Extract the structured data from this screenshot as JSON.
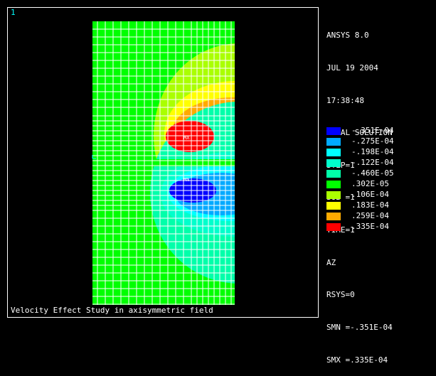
{
  "window_number": "1",
  "info_lines": [
    "ANSYS 8.0",
    "JUL 19 2004",
    "17:38:48",
    "NODAL SOLUTION",
    "STEP=1",
    "SUB =1",
    "TIME=1",
    "AZ",
    "RSYS=0",
    "SMN =-.351E-04",
    "SMX =.335E-04"
  ],
  "legend": [
    {
      "label": "-.351E-04",
      "color": "#0000ff"
    },
    {
      "label": "-.275E-04",
      "color": "#00aaff"
    },
    {
      "label": "-.198E-04",
      "color": "#00ffff"
    },
    {
      "label": "-.122E-04",
      "color": "#00ffcc"
    },
    {
      "label": "-.460E-05",
      "color": "#00ffaa"
    },
    {
      "label": ".302E-05",
      "color": "#00ff00"
    },
    {
      "label": ".106E-04",
      "color": "#aaff00"
    },
    {
      "label": ".183E-04",
      "color": "#ffff00"
    },
    {
      "label": ".259E-04",
      "color": "#ffaa00"
    },
    {
      "label": ".335E-04",
      "color": "#ff0000"
    }
  ],
  "plot": {
    "max_tag": "MX",
    "min_tag": "MN",
    "caption": "Velocity Effect Study in axisymmetric field"
  }
}
